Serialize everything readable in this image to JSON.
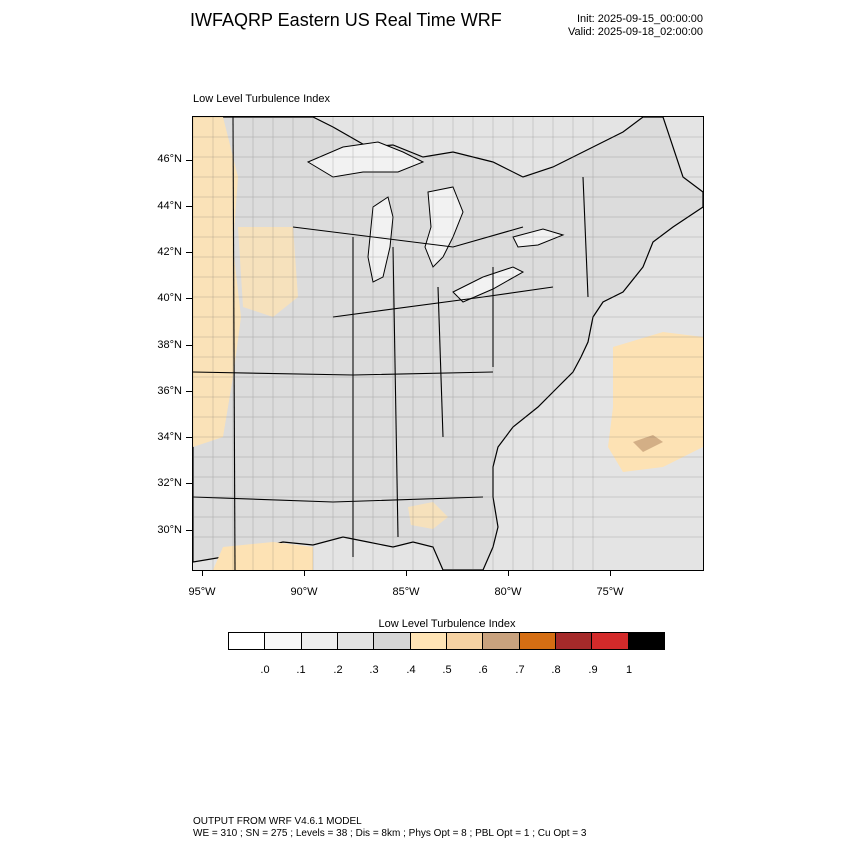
{
  "header": {
    "title": "IWFAQRP Eastern US Real Time WRF",
    "init": "Init: 2025-09-15_00:00:00",
    "valid": "Valid: 2025-09-18_02:00:00"
  },
  "map": {
    "label": "Low Level Turbulence Index",
    "lat_ticks": [
      "46°N",
      "44°N",
      "42°N",
      "40°N",
      "38°N",
      "36°N",
      "34°N",
      "32°N",
      "30°N"
    ],
    "lon_ticks": [
      "95°W",
      "90°W",
      "85°W",
      "80°W",
      "75°W"
    ],
    "colors": {
      "land": "#dcdcdc",
      "water": "#f0f0f0",
      "ocean": "#e4e4e4",
      "elevated": "#fde2b4",
      "high": "#c8a27a",
      "borders": "#000000"
    }
  },
  "colorbar": {
    "title": "Low Level Turbulence Index",
    "labels": [
      ".0",
      ".1",
      ".2",
      ".3",
      ".4",
      ".5",
      ".6",
      ".7",
      ".8",
      ".9",
      "1"
    ],
    "colors": [
      "#ffffff",
      "#f7f7f7",
      "#eeeeee",
      "#e3e3e3",
      "#d6d6d6",
      "#ffe4b5",
      "#f6d2a2",
      "#c9a27e",
      "#d56e13",
      "#a52a2a",
      "#d32a2a",
      "#000000"
    ]
  },
  "footer": {
    "line1": "OUTPUT FROM WRF V4.6.1 MODEL",
    "line2": "WE = 310 ; SN = 275 ; Levels = 38 ; Dis = 8km ; Phys Opt = 8 ; PBL Opt = 1 ; Cu Opt = 3"
  }
}
